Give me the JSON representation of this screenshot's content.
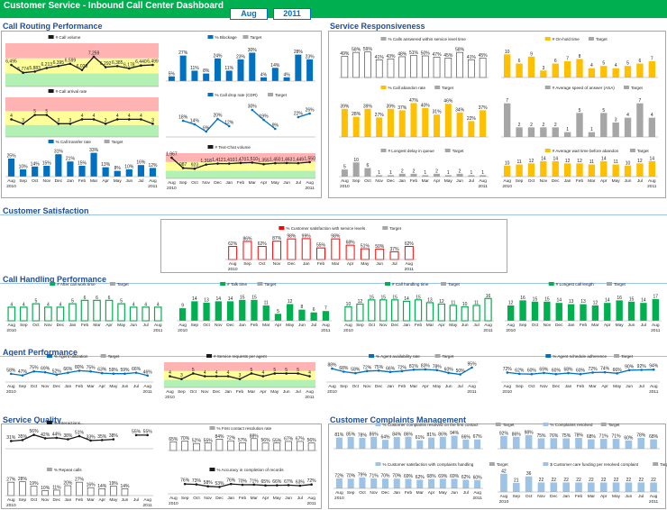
{
  "header": {
    "title": "Customer Service - Inbound Call Center Dashboard",
    "month": "Aug",
    "year": "2011"
  },
  "sections": {
    "call_routing": "Call Routing Performance",
    "service_responsiveness": "Service Responsiveness",
    "customer_satisfaction": "Customer Satisfaction",
    "call_handling": "Call Handling Performance",
    "agent_performance": "Agent Performance",
    "service_quality": "Service Quality",
    "complaints": "Customer Complaints Management"
  },
  "axis": {
    "months": [
      "Aug",
      "Sep",
      "Oct",
      "Nov",
      "Dec",
      "Jan",
      "Feb",
      "Mar",
      "Apr",
      "May",
      "Jun",
      "Jul",
      "Aug"
    ],
    "y2010": "2010",
    "y2011": "2011"
  },
  "colors": {
    "green": "#00b050",
    "blue": "#0070c0",
    "yellow": "#ffc000",
    "grey": "#a6a6a6",
    "dark": "#1a1a1a",
    "red": "#ff0000",
    "lightblue": "#9dc3e6",
    "band_red": "#ffb3b3",
    "band_yellow": "#ffff99",
    "band_green": "#b3f0b3",
    "white": "#ffffff"
  },
  "chart_data": [
    {
      "id": "call_volume",
      "type": "line",
      "legend": [
        "# Call volume"
      ],
      "style": "line_band",
      "color": "dark",
      "values": [
        6495,
        5774,
        5883,
        6213,
        6395,
        6599,
        6029,
        7259,
        6292,
        6385,
        6178,
        6440,
        6499
      ],
      "labels": [
        "6,495",
        "5,774",
        "5,883",
        "6,213",
        "6,395",
        "6,599",
        "6,029",
        "7,259",
        "6,292",
        "6,385",
        "6,178",
        "6,440",
        "6,499"
      ],
      "ylim": [
        4500,
        8500
      ]
    },
    {
      "id": "blockage",
      "type": "bar",
      "legend": [
        "% Blockage",
        "Target"
      ],
      "style": "bar_target",
      "color": "blue",
      "values": [
        5,
        27,
        11,
        8,
        24,
        11,
        23,
        30,
        4,
        14,
        4,
        28,
        23
      ],
      "labels": [
        "5%",
        "27%",
        "11%",
        "8%",
        "24%",
        "11%",
        "23%",
        "30%",
        "4%",
        "14%",
        "4%",
        "28%",
        "23%"
      ],
      "ylim": [
        0,
        40
      ]
    },
    {
      "id": "call_arrival_rate",
      "type": "line",
      "legend": [
        "# Call arrival rate"
      ],
      "style": "line_band",
      "color": "dark",
      "values": [
        4,
        3,
        5,
        5,
        3,
        3,
        4,
        4,
        3,
        4,
        4,
        4,
        3
      ],
      "labels": [
        "4",
        "3",
        "5",
        "5",
        "3",
        "3",
        "4",
        "4",
        "3",
        "4",
        "4",
        "4",
        "3"
      ],
      "ylim": [
        0,
        9
      ]
    },
    {
      "id": "call_drop_rate",
      "type": "line",
      "legend": [
        "% Call drop rate (CDR)",
        "Target"
      ],
      "style": "line_target",
      "color": "blue",
      "values": [
        null,
        18,
        14,
        6,
        20,
        12,
        null,
        30,
        19,
        9,
        null,
        22,
        26
      ],
      "labels": [
        "",
        "18%",
        "14%",
        "6%",
        "20%",
        "12%",
        "",
        "30%",
        "19%",
        "9%",
        "",
        "22%",
        "26%"
      ],
      "ylim": [
        0,
        40
      ]
    },
    {
      "id": "call_transfer_rate",
      "type": "bar",
      "legend": [
        "% Call transfer rate",
        "Target"
      ],
      "style": "bar_target",
      "color": "blue",
      "values": [
        25,
        10,
        14,
        15,
        31,
        21,
        15,
        33,
        13,
        8,
        10,
        16,
        12
      ],
      "labels": [
        "25%",
        "10%",
        "14%",
        "15%",
        "31%",
        "21%",
        "15%",
        "33%",
        "13%",
        "8%",
        "10%",
        "16%",
        "12%"
      ],
      "ylim": [
        0,
        40
      ]
    },
    {
      "id": "text_chat_volume",
      "type": "line",
      "legend": [
        "# Text-Chat volume"
      ],
      "style": "line_band",
      "color": "dark",
      "values": [
        1967,
        987,
        923,
        1318,
        1412,
        1410,
        1470,
        1510,
        1355,
        1450,
        1463,
        1449,
        1550
      ],
      "labels": [
        "1,967",
        "987",
        "923",
        "1,318",
        "1,412",
        "1,410",
        "1,470",
        "1,510",
        "1,355",
        "1,450",
        "1,463",
        "1,449",
        "1,550"
      ],
      "ylim": [
        0,
        2400
      ]
    },
    {
      "id": "calls_answered_sla",
      "type": "bar",
      "legend": [
        "% Calls answered within service level time"
      ],
      "style": "bar_target",
      "color": "white",
      "values": [
        49,
        58,
        59,
        41,
        43,
        48,
        51,
        50,
        47,
        45,
        58,
        41,
        45
      ],
      "labels": [
        "49%",
        "58%",
        "59%",
        "41%",
        "43%",
        "48%",
        "51%",
        "50%",
        "47%",
        "45%",
        "58%",
        "41%",
        "45%"
      ],
      "ylim": [
        0,
        75
      ]
    },
    {
      "id": "on_hold_time",
      "type": "bar",
      "legend": [
        "# On-hold time",
        "Target"
      ],
      "style": "bar_target",
      "color": "yellow",
      "values": [
        10,
        6,
        9,
        3,
        6,
        7,
        8,
        4,
        5,
        4,
        5,
        6,
        7
      ],
      "labels": [
        "10",
        "6",
        "9",
        "3",
        "6",
        "7",
        "8",
        "4",
        "5",
        "4",
        "5",
        "6",
        "7"
      ],
      "ylim": [
        0,
        14
      ]
    },
    {
      "id": "call_abandon_rate",
      "type": "bar",
      "legend": [
        "% Call abandon rate",
        "Target"
      ],
      "style": "bar_target",
      "color": "yellow",
      "values": [
        39,
        28,
        39,
        27,
        39,
        37,
        47,
        40,
        31,
        46,
        34,
        22,
        37
      ],
      "labels": [
        "39%",
        "28%",
        "39%",
        "27%",
        "39%",
        "37%",
        "47%",
        "40%",
        "31%",
        "46%",
        "34%",
        "22%",
        "37%"
      ],
      "ylim": [
        0,
        60
      ]
    },
    {
      "id": "speed_of_answer",
      "type": "bar",
      "legend": [
        "# Average speed of answer (ASA)",
        "Target"
      ],
      "style": "bar_target",
      "color": "grey",
      "values": [
        7,
        2,
        2,
        2,
        2,
        1,
        5,
        1,
        5,
        3,
        4,
        7,
        4
      ],
      "labels": [
        "7",
        "2",
        "2",
        "2",
        "2",
        "1",
        "5",
        "1",
        "5",
        "3",
        "4",
        "7",
        "4"
      ],
      "ylim": [
        0,
        9
      ]
    },
    {
      "id": "longest_delay",
      "type": "bar",
      "legend": [
        "# Longest delay in queue",
        "Target"
      ],
      "style": "bar_target",
      "color": "grey",
      "values": [
        5,
        10,
        6,
        1,
        1,
        2,
        2,
        1,
        2,
        1,
        2,
        1,
        1
      ],
      "labels": [
        "5",
        "10",
        "6",
        "1",
        "1",
        "2",
        "2",
        "1",
        "2",
        "1",
        "2",
        "1",
        "1"
      ],
      "ylim": [
        0,
        14
      ]
    },
    {
      "id": "wait_before_abandon",
      "type": "bar",
      "legend": [
        "# Average wait time before abandon",
        "Target"
      ],
      "style": "bar_target",
      "color": "yellow",
      "values": [
        10,
        11,
        12,
        14,
        14,
        12,
        12,
        11,
        14,
        11,
        10,
        12,
        14
      ],
      "labels": [
        "10",
        "11",
        "12",
        "14",
        "14",
        "12",
        "12",
        "11",
        "14",
        "11",
        "10",
        "12",
        "14"
      ],
      "ylim": [
        0,
        18
      ]
    },
    {
      "id": "customer_satisfaction",
      "type": "bar",
      "legend": [
        "% Customer satisfaction with service levels",
        "Target"
      ],
      "style": "bar_target",
      "color": "red",
      "values": [
        62,
        86,
        62,
        87,
        98,
        99,
        55,
        98,
        68,
        51,
        50,
        37,
        62
      ],
      "labels": [
        "62%",
        "86%",
        "62%",
        "87%",
        "98%",
        "99%",
        "55%",
        "98%",
        "68%",
        "51%",
        "50%",
        "37%",
        "62%"
      ],
      "ylim": [
        0,
        120
      ]
    },
    {
      "id": "after_call_work_time",
      "type": "bar",
      "legend": [
        "# After call work time",
        "Target"
      ],
      "style": "bar_target",
      "color": "green_outline",
      "values": [
        4,
        4,
        5,
        4,
        4,
        5,
        6,
        6,
        6,
        5,
        4,
        4,
        4
      ],
      "labels": [
        "4",
        "4",
        "5",
        "4",
        "4",
        "5",
        "6",
        "6",
        "6",
        "5",
        "4",
        "4",
        "4"
      ],
      "ylim": [
        0,
        9
      ]
    },
    {
      "id": "talk_time",
      "type": "bar",
      "legend": [
        "# Talk time",
        "Target"
      ],
      "style": "bar_target",
      "color": "green",
      "values": [
        9,
        14,
        13,
        14,
        14,
        15,
        15,
        11,
        5,
        12,
        8,
        6,
        7
      ],
      "labels": [
        "9",
        "14",
        "13",
        "14",
        "14",
        "15",
        "15",
        "11",
        "5",
        "12",
        "8",
        "6",
        "7"
      ],
      "ylim": [
        0,
        22
      ]
    },
    {
      "id": "call_handling_time",
      "type": "bar",
      "legend": [
        "# Call handling time",
        "Target"
      ],
      "style": "bar_target",
      "color": "green_outline",
      "values": [
        10,
        12,
        15,
        15,
        15,
        14,
        15,
        13,
        12,
        11,
        10,
        11,
        16
      ],
      "labels": [
        "10",
        "12",
        "15",
        "15",
        "15",
        "14",
        "15",
        "13",
        "12",
        "11",
        "10",
        "11",
        "16"
      ],
      "ylim": [
        0,
        22
      ]
    },
    {
      "id": "longest_call",
      "type": "bar",
      "legend": [
        "# Longest call length",
        "Target"
      ],
      "style": "bar_target",
      "color": "green",
      "values": [
        12,
        16,
        15,
        15,
        14,
        13,
        13,
        12,
        14,
        16,
        15,
        14,
        17
      ],
      "labels": [
        "12",
        "16",
        "15",
        "15",
        "14",
        "13",
        "13",
        "12",
        "14",
        "16",
        "15",
        "14",
        "17"
      ],
      "ylim": [
        0,
        24
      ]
    },
    {
      "id": "agent_utilization",
      "type": "line",
      "legend": [
        "% Agent utilization",
        "Target"
      ],
      "style": "line_target",
      "color": "blue",
      "values": [
        58,
        47,
        75,
        69,
        52,
        66,
        80,
        75,
        63,
        59,
        59,
        66,
        46
      ],
      "labels": [
        "58%",
        "47%",
        "75%",
        "69%",
        "52%",
        "66%",
        "80%",
        "75%",
        "63%",
        "59%",
        "59%",
        "66%",
        "46%"
      ],
      "ylim": [
        0,
        140
      ]
    },
    {
      "id": "service_requests_per_agent",
      "type": "line",
      "legend": [
        "# Service requests per agent"
      ],
      "style": "line_band",
      "color": "dark",
      "values": [
        4,
        3,
        5,
        4,
        4,
        4,
        3,
        5,
        4,
        5,
        5,
        5,
        4
      ],
      "labels": [
        "4",
        "3",
        "5",
        "4",
        "4",
        "4",
        "3",
        "5",
        "4",
        "5",
        "5",
        "5",
        "4"
      ],
      "ylim": [
        0,
        9
      ]
    },
    {
      "id": "agent_availability",
      "type": "line",
      "legend": [
        "% Agent availability rate",
        "Target"
      ],
      "style": "line_target",
      "color": "blue",
      "values": [
        88,
        68,
        58,
        72,
        75,
        66,
        72,
        81,
        83,
        78,
        60,
        50,
        95
      ],
      "labels": [
        "88%",
        "68%",
        "58%",
        "72%",
        "75%",
        "66%",
        "72%",
        "81%",
        "83%",
        "78%",
        "60%",
        "50%",
        "95%"
      ],
      "ylim": [
        0,
        130
      ]
    },
    {
      "id": "schedule_adherence",
      "type": "line",
      "legend": [
        "% Agent schedule adherence",
        "Target"
      ],
      "style": "line_target",
      "color": "blue",
      "values": [
        72,
        62,
        60,
        69,
        60,
        68,
        60,
        72,
        74,
        66,
        90,
        92,
        94
      ],
      "labels": [
        "72%",
        "62%",
        "60%",
        "69%",
        "60%",
        "68%",
        "60%",
        "72%",
        "74%",
        "66%",
        "90%",
        "92%",
        "94%"
      ],
      "ylim": [
        0,
        150
      ]
    },
    {
      "id": "interactions",
      "type": "line",
      "legend": [
        "% Interactions..."
      ],
      "style": "line_plain",
      "color": "dark",
      "values": [
        31,
        35,
        56,
        42,
        44,
        38,
        51,
        33,
        35,
        38,
        null,
        55,
        55
      ],
      "labels": [
        "31%",
        "35%",
        "56%",
        "42%",
        "44%",
        "38%",
        "51%",
        "33%",
        "35%",
        "38%",
        "",
        "55%",
        "55%"
      ],
      "ylim": [
        0,
        80
      ]
    },
    {
      "id": "first_contact_resolution",
      "type": "bar",
      "legend": [
        "% First contact resolution rate"
      ],
      "style": "bar_target",
      "color": "white",
      "values": [
        65,
        70,
        52,
        55,
        84,
        72,
        57,
        88,
        56,
        55,
        67,
        67,
        56
      ],
      "labels": [
        "65%",
        "70%",
        "52%",
        "55%",
        "84%",
        "72%",
        "57%",
        "88%",
        "56%",
        "55%",
        "67%",
        "67%",
        "56%"
      ],
      "ylim": [
        0,
        120
      ]
    },
    {
      "id": "repeat_calls",
      "type": "bar",
      "legend": [
        "% Repeat calls"
      ],
      "style": "bar_target",
      "color": "white",
      "values": [
        27,
        28,
        19,
        10,
        11,
        20,
        27,
        16,
        14,
        19,
        14,
        null,
        null
      ],
      "labels": [
        "27%",
        "28%",
        "19%",
        "10%",
        "11%",
        "20%",
        "27%",
        "16%",
        "14%",
        "19%",
        "14%",
        "",
        ""
      ],
      "ylim": [
        0,
        40
      ]
    },
    {
      "id": "accuracy_records",
      "type": "line",
      "legend": [
        "% Accuracy in completion of records"
      ],
      "style": "line_plain",
      "color": "dark",
      "values": [
        null,
        76,
        73,
        58,
        53,
        76,
        70,
        71,
        65,
        66,
        67,
        63,
        72
      ],
      "labels": [
        "",
        "76%",
        "73%",
        "58%",
        "53%",
        "76%",
        "70%",
        "71%",
        "65%",
        "66%",
        "67%",
        "63%",
        "72%"
      ],
      "ylim": [
        0,
        140
      ]
    },
    {
      "id": "complaints_first_contact",
      "type": "bar",
      "legend": [
        "% Customer complaints resolved on the first contact",
        "Target"
      ],
      "style": "bar_target",
      "color": "lightblue",
      "values": [
        81,
        85,
        78,
        86,
        64,
        84,
        86,
        61,
        81,
        86,
        94,
        66,
        67
      ],
      "labels": [
        "81%",
        "85%",
        "78%",
        "86%",
        "64%",
        "84%",
        "86%",
        "61%",
        "81%",
        "86%",
        "94%",
        "66%",
        "67%"
      ],
      "ylim": [
        0,
        130
      ]
    },
    {
      "id": "complaints_resolved",
      "type": "bar",
      "legend": [
        "% Complaints resolved",
        "Target"
      ],
      "style": "bar_target",
      "color": "lightblue",
      "values": [
        92,
        86,
        98,
        75,
        76,
        75,
        78,
        68,
        71,
        71,
        60,
        78,
        68
      ],
      "labels": [
        "92%",
        "86%",
        "98%",
        "75%",
        "76%",
        "75%",
        "78%",
        "68%",
        "71%",
        "71%",
        "60%",
        "78%",
        "68%"
      ],
      "ylim": [
        0,
        130
      ]
    },
    {
      "id": "satisfaction_complaints_handling",
      "type": "bar",
      "legend": [
        "% Customer satisfaction with complaints handling",
        "Target"
      ],
      "style": "bar_target",
      "color": "lightblue",
      "values": [
        72,
        70,
        79,
        71,
        70,
        70,
        69,
        62,
        68,
        69,
        69,
        62,
        60
      ],
      "labels": [
        "72%",
        "70%",
        "79%",
        "71%",
        "70%",
        "70%",
        "69%",
        "62%",
        "68%",
        "69%",
        "69%",
        "62%",
        "60%"
      ],
      "ylim": [
        0,
        130
      ]
    },
    {
      "id": "care_funding",
      "type": "bar",
      "legend": [
        "$ Customer care funding per resolved complaint",
        "Target"
      ],
      "style": "bar_target",
      "color": "lightblue",
      "values": [
        42,
        21,
        36,
        22,
        22,
        22,
        22,
        22,
        22,
        22,
        22,
        22,
        22
      ],
      "labels": [
        "42",
        "21",
        "36",
        "22",
        "22",
        "22",
        "22",
        "22",
        "22",
        "22",
        "22",
        "22",
        "22"
      ],
      "ylim": [
        0,
        50
      ]
    }
  ]
}
